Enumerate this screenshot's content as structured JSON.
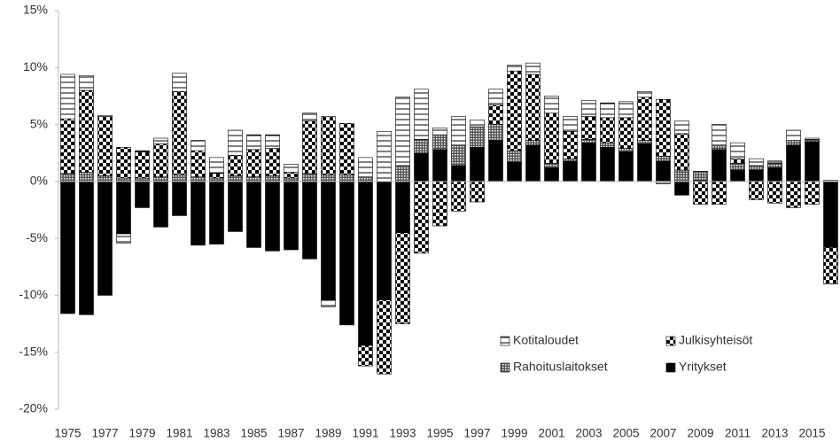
{
  "chart_data": {
    "type": "stacked_bar",
    "categories": [
      "1975",
      null,
      "1977",
      null,
      "1979",
      null,
      "1981",
      null,
      "1983",
      null,
      "1985",
      null,
      "1987",
      null,
      "1989",
      null,
      "1991",
      null,
      "1993",
      null,
      "1995",
      null,
      "1997",
      null,
      "1999",
      null,
      "2001",
      null,
      "2003",
      null,
      "2005",
      null,
      "2007",
      null,
      "2009",
      null,
      "2011",
      null,
      "2013",
      null,
      "2015",
      null
    ],
    "series": [
      {
        "name": "Yritykset",
        "color": "#000000",
        "pattern": "solid",
        "values": [
          -11.6,
          -11.7,
          -10.0,
          -4.6,
          -2.3,
          -4.0,
          -3.0,
          -5.6,
          -5.5,
          -4.4,
          -5.8,
          -6.1,
          -6.0,
          -6.8,
          -10.4,
          -12.6,
          -14.4,
          -10.4,
          -4.5,
          2.5,
          2.8,
          1.4,
          3.0,
          3.6,
          1.7,
          3.2,
          1.2,
          1.8,
          3.4,
          3.0,
          2.6,
          3.3,
          1.8,
          -1.2,
          0.1,
          2.8,
          1.0,
          1.0,
          1.2,
          3.2,
          3.5,
          -5.8
        ]
      },
      {
        "name": "Rahoituslaitokset",
        "color": "#000000",
        "pattern": "dots",
        "values": [
          0.7,
          0.8,
          0.5,
          0.3,
          0.3,
          0.4,
          0.6,
          0.4,
          0.3,
          0.5,
          0.4,
          0.5,
          0.3,
          0.7,
          0.6,
          0.6,
          0.4,
          0,
          1.4,
          1.2,
          1.3,
          1.8,
          1.8,
          1.4,
          1.0,
          0.4,
          0.4,
          0.2,
          0.3,
          0.4,
          0.3,
          0.3,
          0.4,
          1.0,
          0.8,
          0.4,
          0.6,
          0.4,
          0.4,
          0.4,
          0.2,
          0
        ]
      },
      {
        "name": "Julkisyhteisöt",
        "color": "#000000",
        "pattern": "checker",
        "values": [
          4.8,
          7.2,
          5.2,
          2.7,
          2.3,
          2.9,
          7.3,
          2.3,
          0.4,
          1.8,
          2.4,
          2.4,
          0.5,
          4.6,
          5.1,
          4.5,
          -1.8,
          -6.5,
          -8.0,
          -6.3,
          -3.9,
          -2.6,
          -1.8,
          1.7,
          7.0,
          5.8,
          4.4,
          2.4,
          2.0,
          2.2,
          2.7,
          3.8,
          5.0,
          3.2,
          -2.0,
          -2.0,
          0.4,
          -1.6,
          -1.9,
          -2.3,
          -2.0,
          -3.2
        ]
      },
      {
        "name": "Kotitaloudet",
        "color": "#000000",
        "pattern": "lines",
        "values": [
          3.9,
          1.3,
          0.1,
          -0.8,
          0.1,
          0.5,
          1.6,
          0.9,
          1.4,
          2.2,
          1.3,
          1.2,
          0.7,
          0.7,
          -0.6,
          0,
          1.7,
          4.4,
          6.0,
          4.4,
          0.6,
          2.5,
          0.6,
          1.4,
          0.5,
          1.0,
          1.5,
          1.3,
          1.4,
          1.3,
          1.4,
          0.5,
          -0.2,
          1.1,
          0,
          1.8,
          1.4,
          0.6,
          0.2,
          0.9,
          0.1,
          0.1
        ]
      }
    ],
    "ylim": [
      -20,
      15
    ],
    "yticks": [
      {
        "value": -20,
        "label": "-20%"
      },
      {
        "value": -15,
        "label": "-15%"
      },
      {
        "value": -10,
        "label": "-10%"
      },
      {
        "value": -5,
        "label": "-5%"
      },
      {
        "value": 0,
        "label": "0%"
      },
      {
        "value": 5,
        "label": "5%"
      },
      {
        "value": 10,
        "label": "10%"
      },
      {
        "value": 15,
        "label": "15%"
      }
    ],
    "grid": false,
    "legend": "lower right"
  }
}
